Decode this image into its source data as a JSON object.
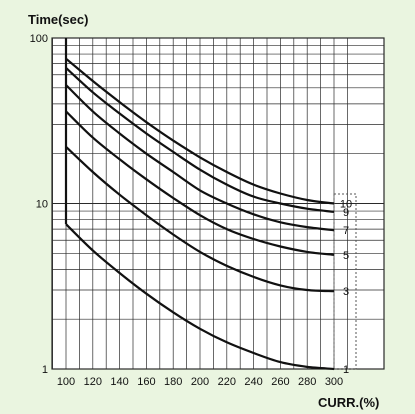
{
  "chart_data": {
    "type": "line",
    "y_scale": "log",
    "ylabel": "Time(sec)",
    "xlabel": "CURR.(%)",
    "xlim": [
      90,
      310
    ],
    "ylim": [
      1,
      100
    ],
    "grid": true,
    "x_ticks": [
      "100",
      "120",
      "140",
      "160",
      "180",
      "200",
      "220",
      "240",
      "260",
      "280",
      "300"
    ],
    "y_ticks": [
      "1",
      "10",
      "100"
    ],
    "series": [
      {
        "name": "10",
        "x": [
          100,
          120,
          140,
          160,
          180,
          200,
          220,
          240,
          260,
          280,
          300
        ],
        "y": [
          75,
          55,
          41,
          31,
          24,
          19,
          15.5,
          13,
          11.5,
          10.5,
          10
        ]
      },
      {
        "name": "9",
        "x": [
          100,
          120,
          140,
          160,
          180,
          200,
          220,
          240,
          260,
          280,
          300
        ],
        "y": [
          66,
          47,
          35,
          26.5,
          20.5,
          16,
          13,
          11,
          10,
          9.3,
          8.9
        ]
      },
      {
        "name": "7",
        "x": [
          100,
          120,
          140,
          160,
          180,
          200,
          220,
          240,
          260,
          280,
          300
        ],
        "y": [
          52,
          36,
          26.5,
          20,
          15.5,
          12,
          10,
          8.6,
          7.7,
          7.2,
          6.9
        ]
      },
      {
        "name": "5",
        "x": [
          100,
          120,
          140,
          160,
          180,
          200,
          220,
          240,
          260,
          280,
          300
        ],
        "y": [
          36,
          25,
          18.5,
          14,
          10.8,
          8.5,
          7,
          6.1,
          5.5,
          5.1,
          4.9
        ]
      },
      {
        "name": "3",
        "x": [
          100,
          120,
          140,
          160,
          180,
          200,
          220,
          240,
          260,
          280,
          300
        ],
        "y": [
          22,
          15.5,
          11.3,
          8.5,
          6.5,
          5.1,
          4.2,
          3.6,
          3.2,
          3.0,
          2.95
        ]
      },
      {
        "name": "1",
        "x": [
          100,
          120,
          140,
          160,
          180,
          200,
          220,
          240,
          260,
          280,
          300
        ],
        "y": [
          7.5,
          5.2,
          3.8,
          2.85,
          2.2,
          1.75,
          1.45,
          1.25,
          1.1,
          1.03,
          1.0
        ]
      }
    ],
    "colors": {
      "background": "#eaf5e0",
      "plot_area": "#ffffff",
      "grid": "#2a2a2a",
      "curve": "#111111"
    }
  }
}
